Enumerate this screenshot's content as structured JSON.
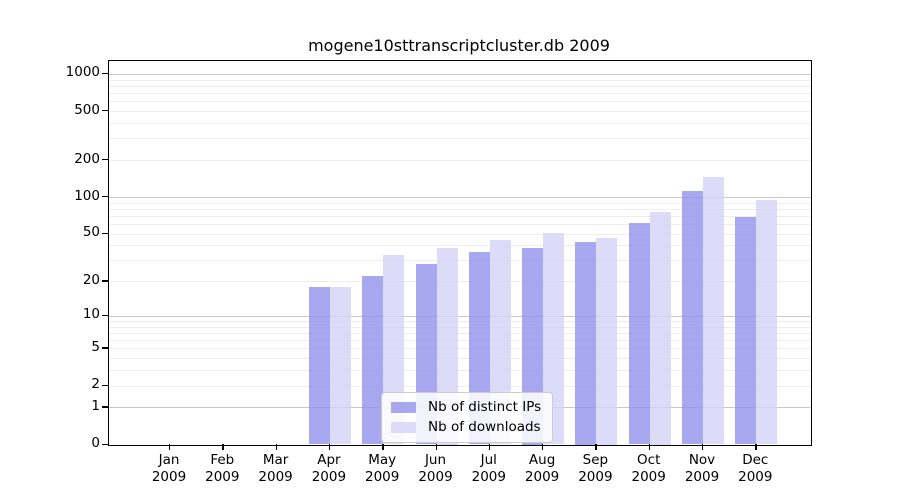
{
  "chart_data": {
    "type": "bar",
    "title": "mogene10sttranscriptcluster.db 2009",
    "categories": [
      "Jan",
      "Feb",
      "Mar",
      "Apr",
      "May",
      "Jun",
      "Jul",
      "Aug",
      "Sep",
      "Oct",
      "Nov",
      "Dec"
    ],
    "x_tick_year_line": "2009",
    "series": [
      {
        "name": "Nb of distinct IPs",
        "color_rgba": "rgba(146,146,236,0.8)",
        "color_solid": "#a8a8f0",
        "values": [
          0,
          0,
          0,
          18,
          22,
          28,
          35,
          38,
          43,
          61,
          112,
          68
        ]
      },
      {
        "name": "Nb of downloads",
        "color_rgba": "rgba(211,211,246,0.8)",
        "color_solid": "#dcdcf8",
        "values": [
          0,
          0,
          0,
          18,
          33,
          38,
          44,
          51,
          46,
          76,
          146,
          95
        ]
      }
    ],
    "yscale": "log1p",
    "yticks": [
      0,
      1,
      2,
      5,
      10,
      20,
      50,
      100,
      200,
      500,
      1000
    ],
    "ylim": [
      0,
      1274
    ],
    "xlabel": "",
    "ylabel": "",
    "grid": "on",
    "grid_major_color": "#c8c8c8",
    "grid_minor_color": "#ededed",
    "legend_position": "inside lower-center",
    "frame_color": "#000000",
    "background_color": "#ffffff"
  }
}
